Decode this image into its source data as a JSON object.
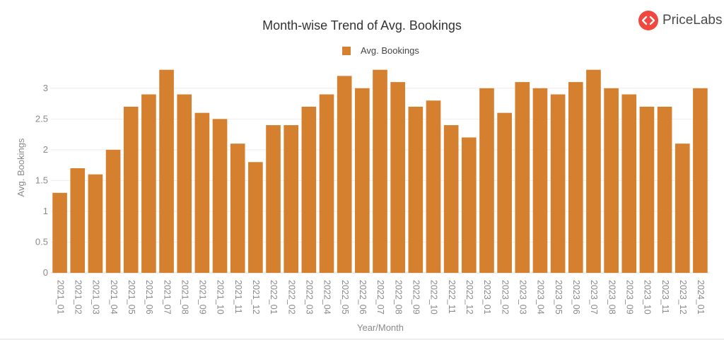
{
  "brand": {
    "name": "PriceLabs",
    "icon": "pricelabs-logo-icon",
    "color": "#f0473e"
  },
  "chart_data": {
    "type": "bar",
    "title": "Month-wise Trend of Avg. Bookings",
    "xlabel": "Year/Month",
    "ylabel": "Avg. Bookings",
    "ylim": [
      0,
      3.4
    ],
    "yticks": [
      0,
      0.5,
      1,
      1.5,
      2,
      2.5,
      3
    ],
    "ytick_labels": [
      "0",
      "0.5",
      "1",
      "1.5",
      "2",
      "2.5",
      "3"
    ],
    "grid": true,
    "legend": "top-center",
    "bar_color": "#d4802f",
    "categories": [
      "2021_01",
      "2021_02",
      "2021_03",
      "2021_04",
      "2021_05",
      "2021_06",
      "2021_07",
      "2021_08",
      "2021_09",
      "2021_10",
      "2021_11",
      "2021_12",
      "2022_01",
      "2022_02",
      "2022_03",
      "2022_04",
      "2022_05",
      "2022_06",
      "2022_07",
      "2022_08",
      "2022_09",
      "2022_10",
      "2022_11",
      "2022_12",
      "2023_01",
      "2023_02",
      "2023_03",
      "2023_04",
      "2023_05",
      "2023_06",
      "2023_07",
      "2023_08",
      "2023_09",
      "2023_10",
      "2023_11",
      "2023_12",
      "2024_01"
    ],
    "series": [
      {
        "name": "Avg. Bookings",
        "values": [
          1.3,
          1.7,
          1.6,
          2.0,
          2.7,
          2.9,
          3.3,
          2.9,
          2.6,
          2.5,
          2.1,
          1.8,
          2.4,
          2.4,
          2.7,
          2.9,
          3.2,
          3.0,
          3.3,
          3.1,
          2.7,
          2.8,
          2.4,
          2.2,
          3.0,
          2.6,
          3.1,
          3.0,
          2.9,
          3.1,
          3.3,
          3.0,
          2.9,
          2.7,
          2.7,
          2.1,
          3.0
        ]
      }
    ]
  }
}
